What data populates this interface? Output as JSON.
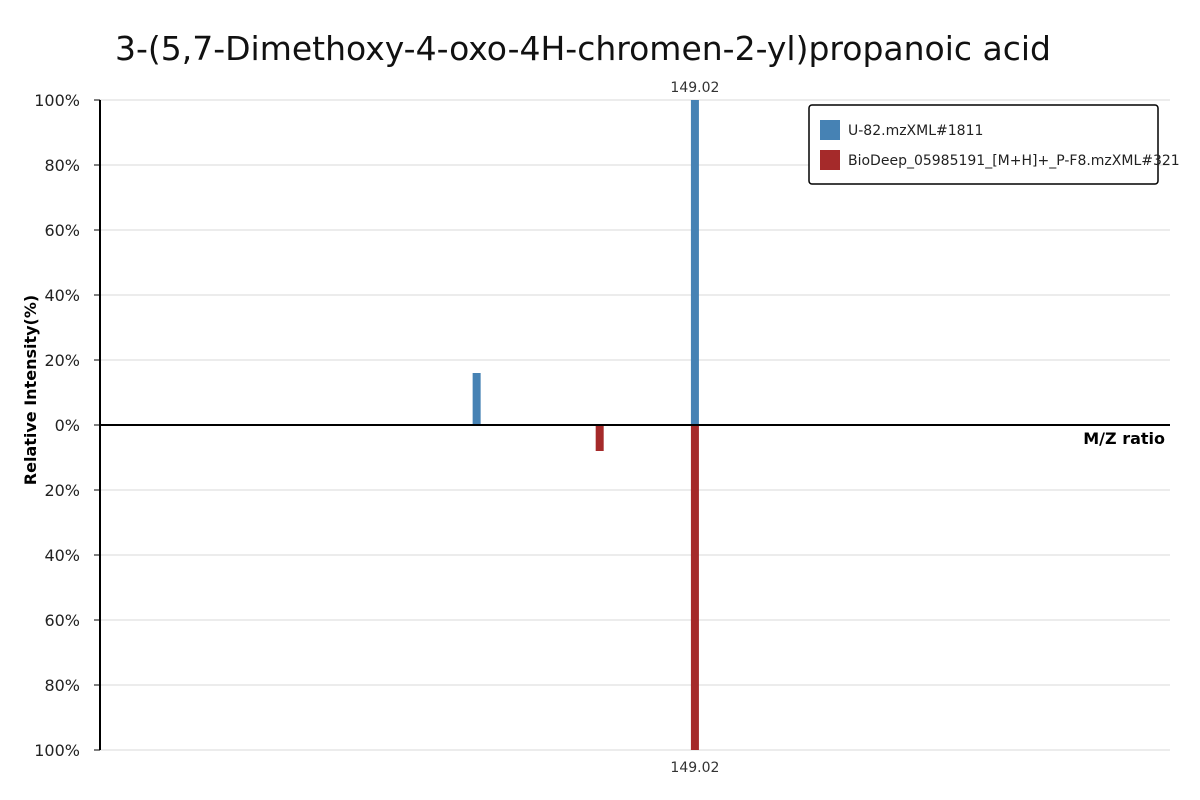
{
  "chart_data": {
    "type": "bar",
    "title": "3-(5,7-Dimethoxy-4-oxo-4H-chromen-2-yl)propanoic  acid",
    "xlabel": "M/Z ratio",
    "ylabel": "Relative Intensity(%)",
    "ylim": [
      -100,
      100
    ],
    "xlim": [
      0,
      1
    ],
    "grid": true,
    "legend_position": "top-right",
    "y_ticks": [
      "100%",
      "80%",
      "60%",
      "40%",
      "20%",
      "0%",
      "20%",
      "40%",
      "60%",
      "80%",
      "100%"
    ],
    "series": [
      {
        "name": "U-82.mzXML#1811",
        "color": "#4682b4",
        "direction": "up",
        "peaks": [
          {
            "x": 0.352,
            "value": 16,
            "label": ""
          },
          {
            "x": 0.556,
            "value": 100,
            "label": "149.02"
          }
        ]
      },
      {
        "name": "BioDeep_05985191_[M+H]+_P-F8.mzXML#321",
        "color": "#a52a2a",
        "direction": "down",
        "peaks": [
          {
            "x": 0.467,
            "value": 8,
            "label": ""
          },
          {
            "x": 0.556,
            "value": 100,
            "label": "149.02"
          }
        ]
      }
    ]
  }
}
